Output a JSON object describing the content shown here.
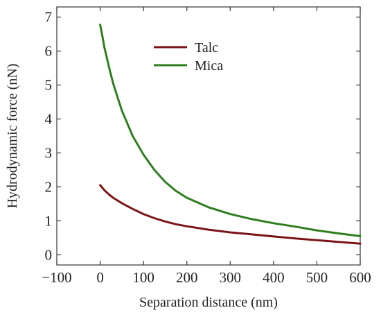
{
  "chart_data": {
    "type": "line",
    "title": "",
    "xlabel": "Separation distance (nm)",
    "ylabel": "Hydrodynamic force (nN)",
    "xlim": [
      -100,
      600
    ],
    "ylim": [
      -0.3,
      7.3
    ],
    "xticks": [
      -100,
      0,
      100,
      200,
      300,
      400,
      500,
      600
    ],
    "yticks": [
      0,
      1,
      2,
      3,
      4,
      5,
      6,
      7
    ],
    "xtick_labels": [
      "−100",
      "0",
      "100",
      "200",
      "300",
      "400",
      "500",
      "600"
    ],
    "ytick_labels": [
      "0",
      "1",
      "2",
      "3",
      "4",
      "5",
      "6",
      "7"
    ],
    "grid": false,
    "legend_position": "top-center",
    "series": [
      {
        "name": "Talc",
        "color": "#7b1416",
        "x": [
          0,
          10,
          20,
          30,
          50,
          75,
          100,
          125,
          150,
          175,
          200,
          250,
          300,
          350,
          400,
          450,
          500,
          550,
          600
        ],
        "y": [
          2.05,
          1.9,
          1.78,
          1.68,
          1.52,
          1.35,
          1.2,
          1.08,
          0.98,
          0.9,
          0.84,
          0.74,
          0.66,
          0.6,
          0.54,
          0.48,
          0.43,
          0.38,
          0.33
        ]
      },
      {
        "name": "Mica",
        "color": "#2e7d1f",
        "x": [
          0,
          5,
          10,
          20,
          30,
          50,
          75,
          100,
          125,
          150,
          175,
          200,
          250,
          300,
          350,
          400,
          450,
          500,
          550,
          600
        ],
        "y": [
          6.78,
          6.45,
          6.1,
          5.55,
          5.05,
          4.25,
          3.5,
          2.95,
          2.5,
          2.15,
          1.88,
          1.68,
          1.4,
          1.2,
          1.05,
          0.93,
          0.83,
          0.72,
          0.63,
          0.55
        ]
      }
    ]
  }
}
